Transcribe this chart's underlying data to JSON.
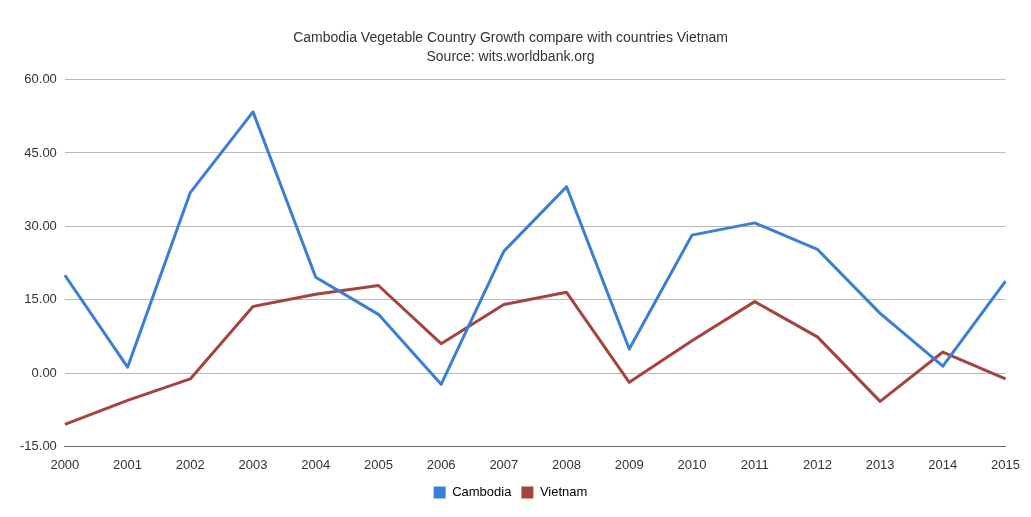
{
  "chart_data": {
    "type": "line",
    "title": "Cambodia Vegetable Country Growth compare with countries Vietnam",
    "subtitle": "Source: wits.worldbank.org",
    "categories": [
      "2000",
      "2001",
      "2002",
      "2003",
      "2004",
      "2005",
      "2006",
      "2007",
      "2008",
      "2009",
      "2010",
      "2011",
      "2012",
      "2013",
      "2014",
      "2015"
    ],
    "series": [
      {
        "name": "Cambodia",
        "color": "#3a7fd5",
        "values": [
          20,
          1.2,
          36.9,
          53.4,
          19.6,
          12,
          -2.3,
          24.9,
          38.1,
          4.9,
          28.2,
          30.7,
          25.3,
          12.2,
          1.4,
          18.8
        ]
      },
      {
        "name": "Vietnam",
        "color": "#a5433f",
        "values": [
          -10.5,
          -5.6,
          -1.2,
          13.6,
          16.1,
          17.9,
          6,
          14,
          16.5,
          -1.9,
          6.6,
          14.6,
          7.4,
          -5.8,
          4.3,
          -1.2
        ]
      }
    ],
    "ylim": [
      -15,
      60
    ],
    "yticks": [
      {
        "value": -15,
        "label": "-15.00"
      },
      {
        "value": 0,
        "label": "0.00"
      },
      {
        "value": 15,
        "label": "15.00"
      },
      {
        "value": 30,
        "label": "30.00"
      },
      {
        "value": 45,
        "label": "45.00"
      },
      {
        "value": 60,
        "label": "60.00"
      }
    ],
    "grid": "y",
    "legend": "bottom",
    "marker": "none",
    "line_style": "solid"
  }
}
